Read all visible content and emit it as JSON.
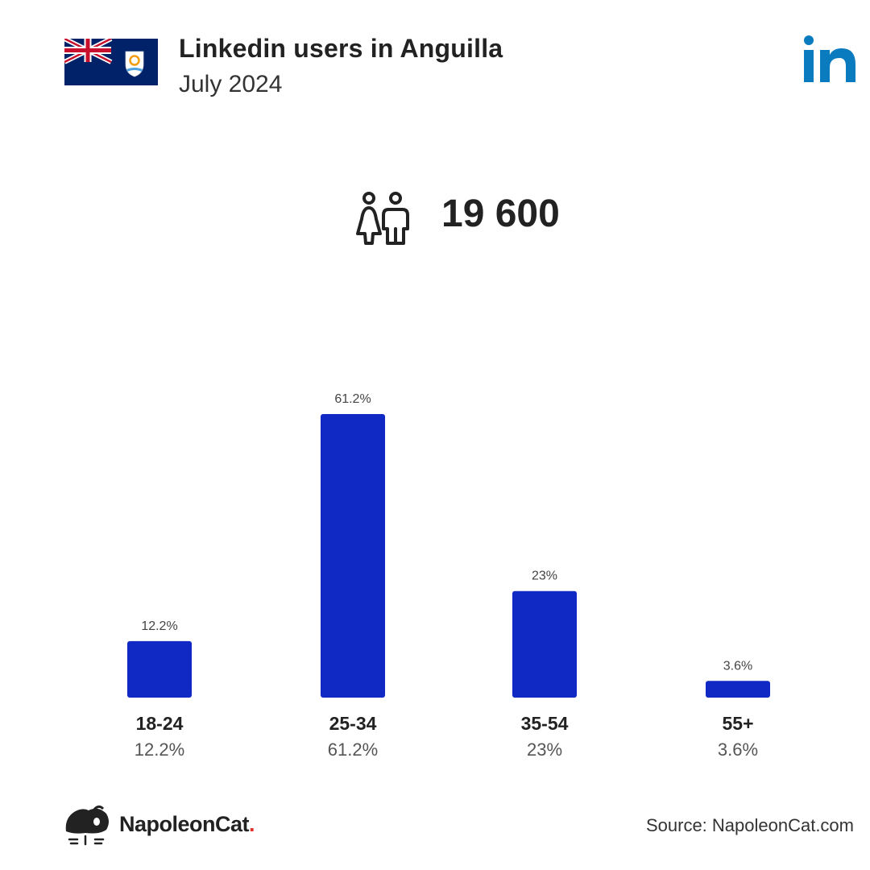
{
  "header": {
    "title": "Linkedin users in Anguilla",
    "subtitle": "July 2024",
    "flag_icon": "anguilla-flag-icon",
    "brand_icon": "linkedin-logo-icon"
  },
  "summary": {
    "icon": "people-icon",
    "total_users": "19 600"
  },
  "chart_data": {
    "type": "bar",
    "categories": [
      "18-24",
      "25-34",
      "35-54",
      "55+"
    ],
    "values": [
      12.2,
      61.2,
      23,
      3.6
    ],
    "value_labels": [
      "12.2%",
      "61.2%",
      "23%",
      "3.6%"
    ],
    "title": "",
    "xlabel": "",
    "ylabel": "",
    "ylim": [
      0,
      61.2
    ],
    "grid": false,
    "legend": "none",
    "bar_color": "#1028c4"
  },
  "footer": {
    "brand_name": "NapoleonCat",
    "brand_dot": ".",
    "source": "Source: NapoleonCat.com"
  },
  "colors": {
    "bar": "#1028c4",
    "linkedin": "#0a7bbf",
    "text": "#222222",
    "accent_dot": "#e0312b"
  }
}
